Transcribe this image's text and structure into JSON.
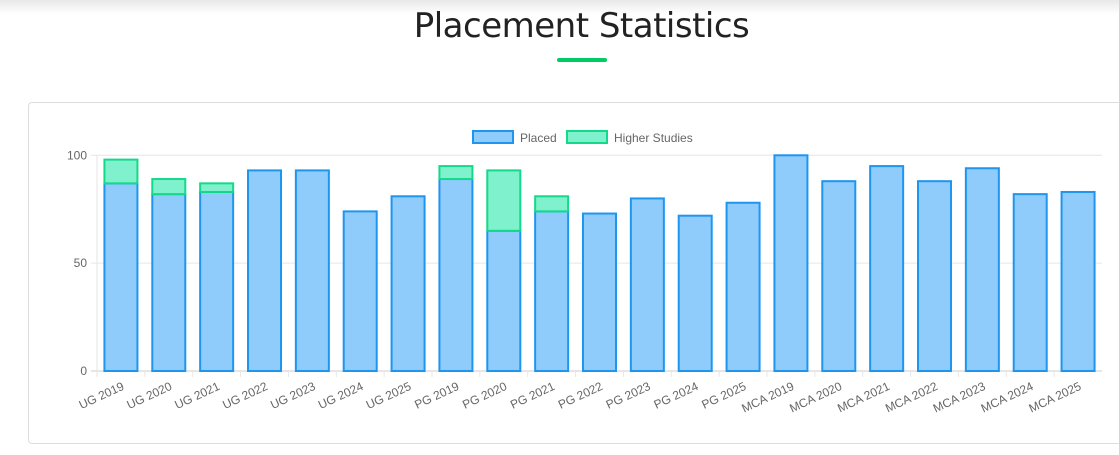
{
  "header": {
    "title": "Placement Statistics"
  },
  "colors": {
    "accent": "#00cc66",
    "placed_fill": "#8fcbfb",
    "placed_border": "#1e96f0",
    "higher_fill": "#7ff2cd",
    "higher_border": "#14d98a"
  },
  "chart_data": {
    "type": "bar",
    "stacked": true,
    "title": "",
    "categories": [
      "UG 2019",
      "UG 2020",
      "UG 2021",
      "UG 2022",
      "UG 2023",
      "UG 2024",
      "UG 2025",
      "PG 2019",
      "PG 2020",
      "PG 2021",
      "PG 2022",
      "PG 2023",
      "PG 2024",
      "PG 2025",
      "MCA 2019",
      "MCA 2020",
      "MCA 2021",
      "MCA 2022",
      "MCA 2023",
      "MCA 2024",
      "MCA 2025"
    ],
    "series": [
      {
        "name": "Placed",
        "values": [
          87,
          82,
          83,
          93,
          93,
          74,
          81,
          89,
          65,
          74,
          73,
          80,
          72,
          78,
          100,
          88,
          95,
          88,
          94,
          82,
          83
        ]
      },
      {
        "name": "Higher Studies",
        "values": [
          11,
          7,
          4,
          0,
          0,
          0,
          0,
          6,
          28,
          7,
          0,
          0,
          0,
          0,
          0,
          0,
          0,
          0,
          0,
          0,
          0
        ]
      }
    ],
    "ylim": [
      0,
      100
    ],
    "yticks": [
      "0",
      "50",
      "100"
    ],
    "legend": "top-center",
    "grid": true
  }
}
